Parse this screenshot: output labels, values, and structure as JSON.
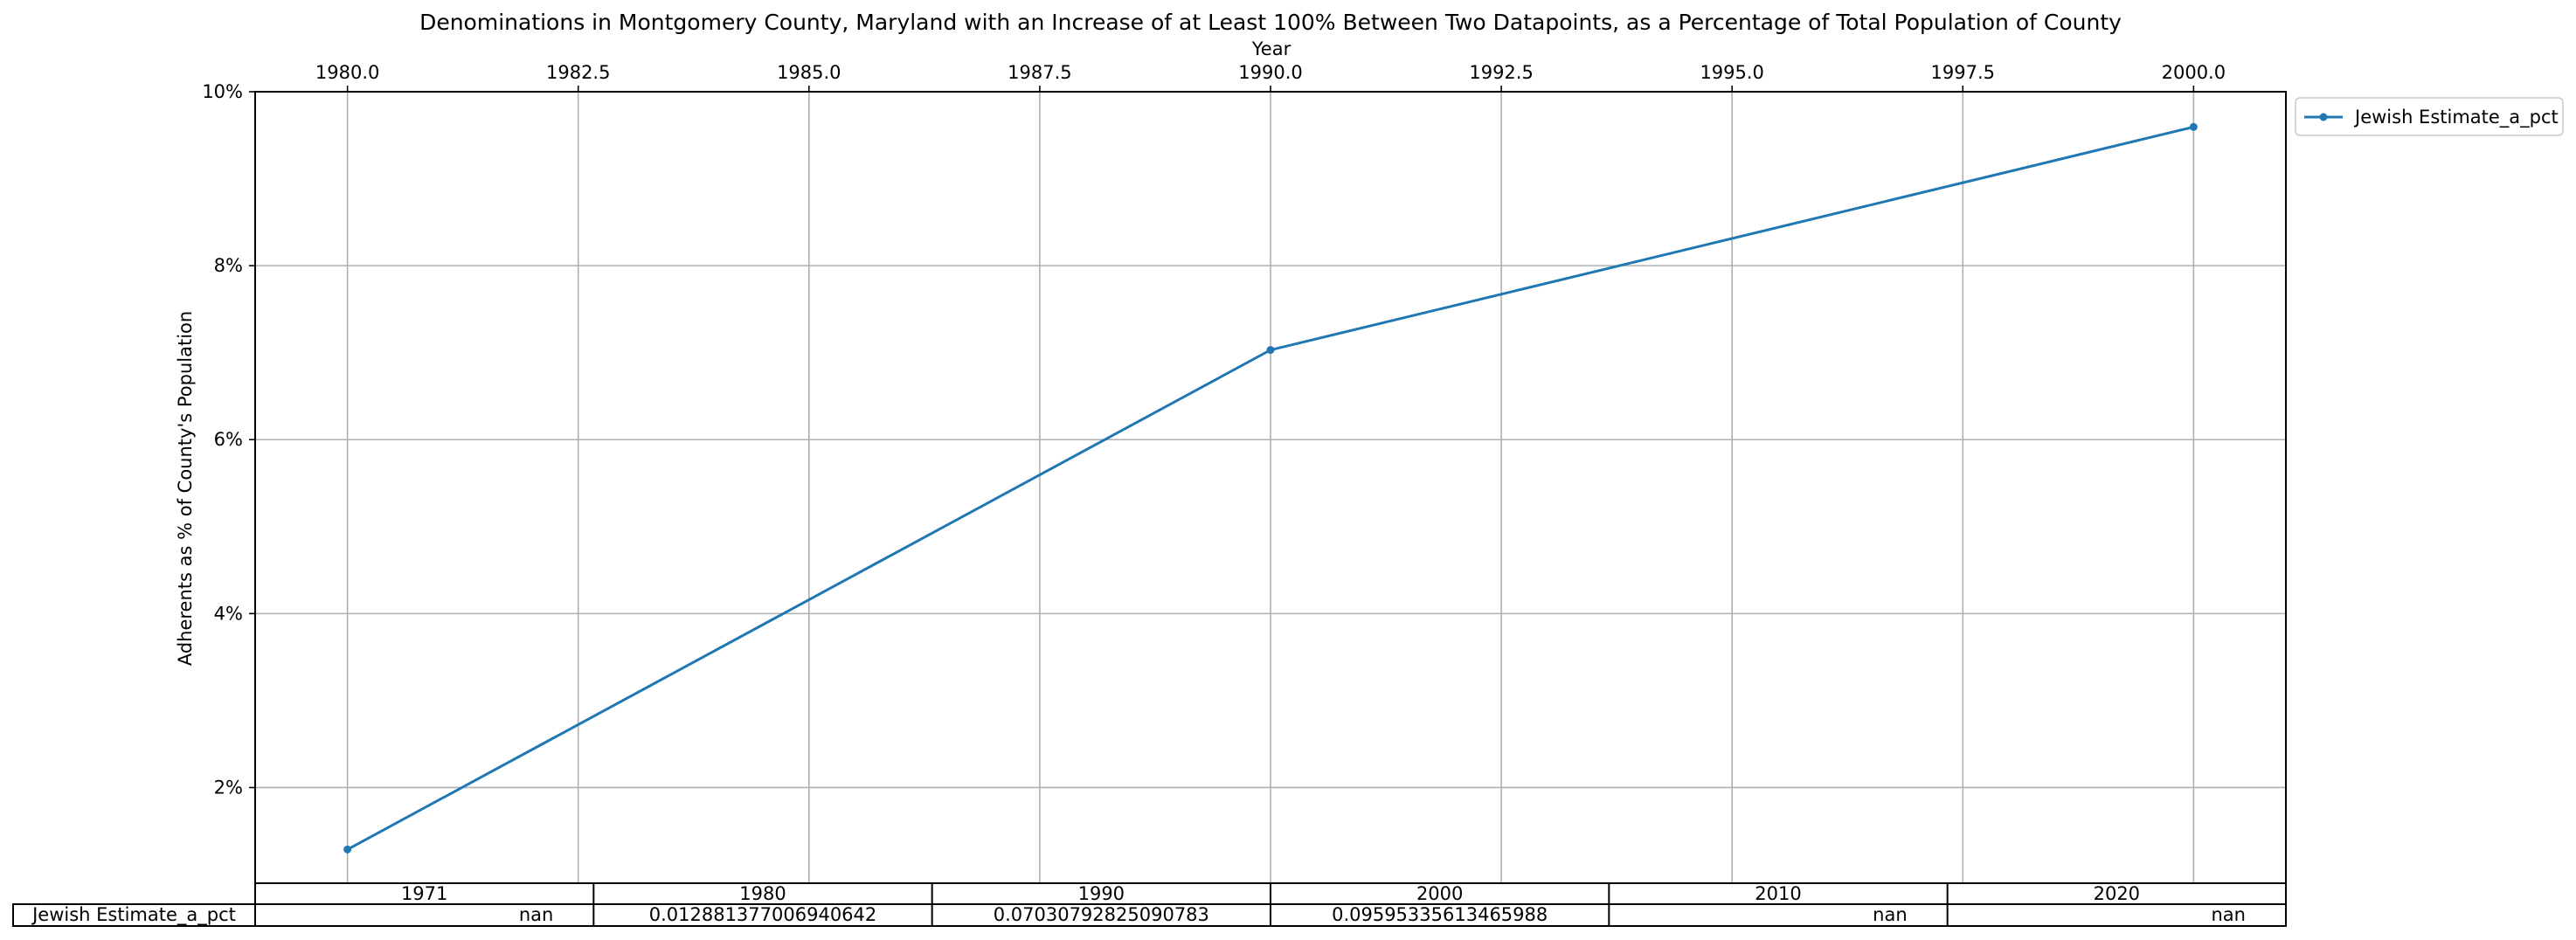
{
  "chart_data": {
    "type": "line",
    "title": "Denominations in Montgomery County, Maryland with an Increase of at Least 100% Between Two Datapoints, as a Percentage of Total Population of County",
    "xlabel": "Year",
    "ylabel": "Adherents as % of County's Population",
    "xlim": [
      1979.0,
      2001.0
    ],
    "ylim": [
      0.009,
      0.1
    ],
    "x_ticks": [
      "1980.0",
      "1982.5",
      "1985.0",
      "1987.5",
      "1990.0",
      "1992.5",
      "1995.0",
      "1997.5",
      "2000.0"
    ],
    "y_ticks": [
      "2%",
      "4%",
      "6%",
      "8%",
      "10%"
    ],
    "grid": true,
    "x_axis_position": "top",
    "legend": {
      "position": "outside-top-right",
      "entries": [
        "Jewish Estimate_a_pct"
      ]
    },
    "series": [
      {
        "name": "Jewish Estimate_a_pct",
        "color": "#1f77b4",
        "x": [
          1980,
          1990,
          2000
        ],
        "y": [
          0.012881377006940642,
          0.07030792825090783,
          0.09595335613465988
        ]
      }
    ],
    "table": {
      "columns": [
        "1971",
        "1980",
        "1990",
        "2000",
        "2010",
        "2020"
      ],
      "rows": [
        {
          "label": "Jewish Estimate_a_pct",
          "cells": [
            "nan",
            "0.012881377006940642",
            "0.07030792825090783",
            "0.09595335613465988",
            "nan",
            "nan"
          ]
        }
      ]
    }
  }
}
